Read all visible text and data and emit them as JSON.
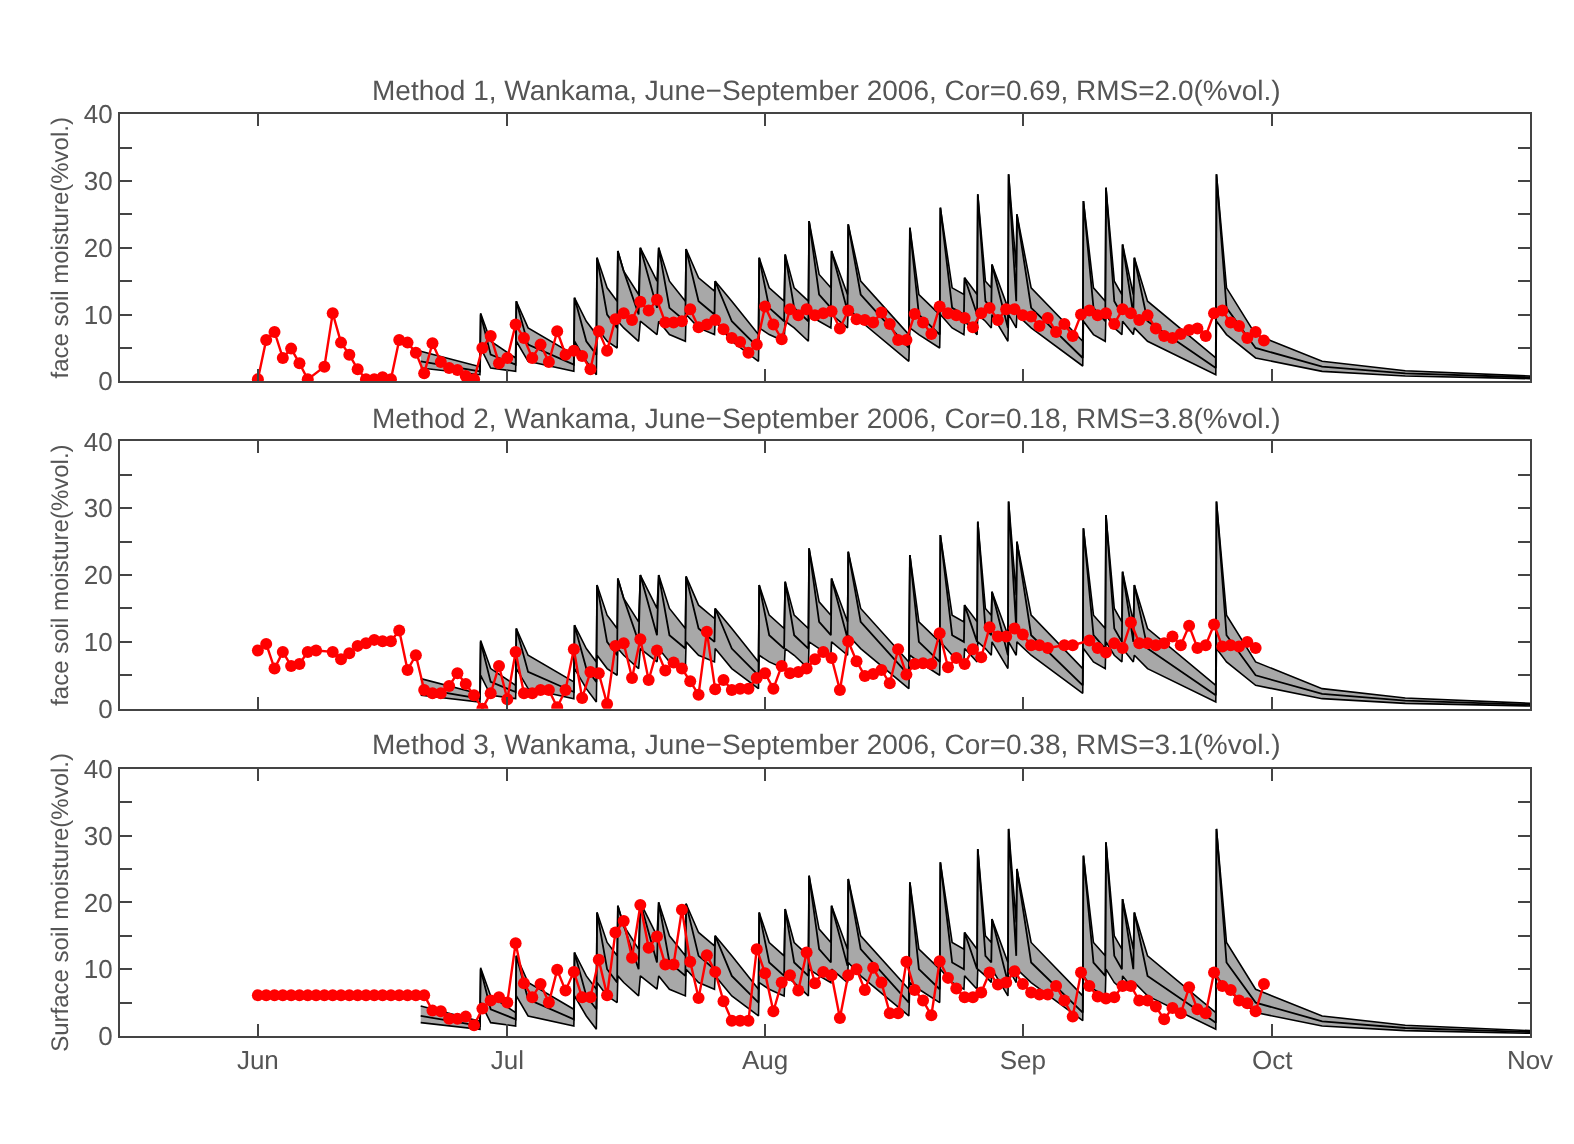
{
  "chart_data": [
    {
      "type": "line",
      "title": "Method 1, Wankama, June−September 2006, Cor=0.69, RMS=2.0(%vol.)",
      "ylabel": "face soil moisture(%vol.)",
      "xlim": [
        "2006-05-15T10:00",
        "2006-11-01"
      ],
      "xticks": [
        {
          "value": "2006-06-01",
          "label": null
        },
        {
          "value": "2006-07-01",
          "label": null
        },
        {
          "value": "2006-08-01",
          "label": null
        },
        {
          "value": "2006-09-01",
          "label": null
        },
        {
          "value": "2006-10-01",
          "label": null
        },
        {
          "value": "2006-11-01",
          "label": null
        }
      ],
      "ylim": [
        0,
        40
      ],
      "yticks": [
        0,
        {
          "value": 5,
          "label": null
        },
        10,
        {
          "value": 15,
          "label": null
        },
        20,
        {
          "value": 25,
          "label": null
        },
        30,
        {
          "value": 35,
          "label": null
        },
        40
      ],
      "tick_labels": "y",
      "line_style": "solid",
      "series": [
        {
          "marker": "none",
          "color": "#000000",
          "x": [
            "2006-06-20T14:00",
            "2006-06-27T17:00",
            "2006-06-27T19:00",
            "2006-06-29",
            "2006-07-02",
            "2006-07-02T02:00",
            "2006-07-03T12:00",
            "2006-07-09",
            "2006-07-09T02:00",
            "2006-07-10T12:00",
            "2006-07-11T17:00",
            "2006-07-11T19:00",
            "2006-07-13",
            "2006-07-14T05:00",
            "2006-07-14T07:00",
            "2006-07-15",
            "2006-07-16T19:00",
            "2006-07-17",
            "2006-07-19",
            "2006-07-19T05:00",
            "2006-07-20T12:00",
            "2006-07-22T10:00",
            "2006-07-22T12:00",
            "2006-07-24",
            "2006-07-25T22:00",
            "2006-07-26",
            "2006-07-28",
            "2006-07-31T05:00",
            "2006-07-31T07:00",
            "2006-08-01T12:00",
            "2006-08-03T07:00",
            "2006-08-03T10:00",
            "2006-08-04T12:00",
            "2006-08-06T05:00",
            "2006-08-06T07:00",
            "2006-08-07T12:00",
            "2006-08-08T22:00",
            "2006-08-09",
            "2006-08-10T22:00",
            "2006-08-11",
            "2006-08-12T12:00",
            "2006-08-18T07:00",
            "2006-08-18T10:00",
            "2006-08-19T12:00",
            "2006-08-22",
            "2006-08-22T02:00",
            "2006-08-23T12:00",
            "2006-08-24T22:00",
            "2006-08-25",
            "2006-08-26T12:00",
            "2006-08-26T14:00",
            "2006-08-27T12:00",
            "2006-08-28T05:00",
            "2006-08-28T07:00",
            "2006-08-30T05:00",
            "2006-08-30T07:00",
            "2006-08-31T05:00",
            "2006-08-31T07:00",
            "2006-09-02",
            "2006-09-08T05:00",
            "2006-09-08T07:00",
            "2006-09-09T12:00",
            "2006-09-10T22:00",
            "2006-09-11",
            "2006-09-12",
            "2006-09-12T22:00",
            "2006-09-13",
            "2006-09-14T07:00",
            "2006-09-14T10:00",
            "2006-09-16",
            "2006-09-24T05:00",
            "2006-09-24T07:00",
            "2006-09-25T12:00",
            "2006-09-29",
            "2006-10-07",
            "2006-10-17",
            "2006-11-01"
          ],
          "values": [
            3,
            1.5,
            10,
            4,
            2.5,
            12,
            5.5,
            2.5,
            12.5,
            6,
            4,
            18.5,
            10,
            8,
            19.5,
            16.5,
            10,
            20,
            11,
            20,
            11,
            9,
            19.8,
            12,
            10,
            15,
            9,
            5,
            18.5,
            11,
            9,
            19,
            11,
            9,
            24,
            13,
            11,
            19.5,
            10.5,
            23.5,
            13,
            5,
            23,
            10,
            7,
            26,
            11,
            10,
            15.5,
            10,
            28,
            12,
            11,
            17.5,
            8,
            31,
            12,
            25,
            11,
            3.5,
            27,
            11,
            9,
            29,
            12,
            10,
            20.5,
            10,
            18.5,
            9,
            2,
            31,
            11,
            5,
            2.2,
            1.2,
            0.6
          ],
          "lower": [
            2,
            1,
            5,
            2,
            1.5,
            6,
            3,
            1.5,
            6,
            3,
            1,
            8,
            6,
            5,
            9,
            8,
            6,
            9,
            7,
            9,
            7,
            6,
            10,
            8,
            7,
            9,
            6,
            3,
            8,
            7,
            6,
            9,
            8,
            6,
            10,
            9,
            8,
            10,
            8,
            11,
            9,
            3,
            8,
            7,
            5,
            10,
            8,
            7,
            9,
            7,
            10,
            9,
            8,
            10,
            6,
            10,
            8,
            10,
            8,
            2.3,
            9,
            7,
            6,
            10,
            8,
            7,
            9,
            7,
            8,
            6,
            1,
            9,
            7,
            3.5,
            1.5,
            0.8,
            0.4
          ],
          "upper": [
            4.5,
            2.2,
            10.2,
            6,
            3.5,
            12,
            8,
            4,
            12.5,
            9,
            7,
            18.5,
            14,
            12,
            19.5,
            16.5,
            13,
            20,
            15,
            20,
            15,
            12,
            19.8,
            15.5,
            13.5,
            15,
            12,
            7,
            18.5,
            14,
            12,
            19,
            14,
            12,
            24,
            16,
            14,
            19.5,
            13,
            23.5,
            15,
            7,
            23,
            13,
            10,
            26,
            14,
            13,
            15.5,
            13,
            28,
            15,
            14,
            17.5,
            11,
            31,
            17,
            25,
            14,
            6,
            27,
            14,
            12,
            29,
            15,
            13,
            20.5,
            13,
            18.5,
            12,
            3.5,
            31,
            14,
            7,
            3,
            1.6,
            0.8
          ]
        },
        {
          "marker": "circle",
          "color": "#ff0000",
          "x": [
            "2006-06-01",
            "2006-06-02",
            "2006-06-03",
            "2006-06-04",
            "2006-06-05",
            "2006-06-06",
            "2006-06-07",
            "2006-06-09",
            "2006-06-10",
            "2006-06-11",
            "2006-06-12",
            "2006-06-13",
            "2006-06-14",
            "2006-06-15",
            "2006-06-16",
            "2006-06-17",
            "2006-06-18",
            "2006-06-19",
            "2006-06-20",
            "2006-06-21",
            "2006-06-22",
            "2006-06-23",
            "2006-06-24",
            "2006-06-25",
            "2006-06-26",
            "2006-06-27",
            "2006-06-28",
            "2006-06-29",
            "2006-06-30",
            "2006-07-01",
            "2006-07-02",
            "2006-07-03",
            "2006-07-04",
            "2006-07-05",
            "2006-07-06",
            "2006-07-07",
            "2006-07-08",
            "2006-07-09",
            "2006-07-10",
            "2006-07-11",
            "2006-07-12",
            "2006-07-13",
            "2006-07-14",
            "2006-07-15",
            "2006-07-16",
            "2006-07-17",
            "2006-07-18",
            "2006-07-19",
            "2006-07-20",
            "2006-07-21",
            "2006-07-22",
            "2006-07-23",
            "2006-07-24",
            "2006-07-25",
            "2006-07-26",
            "2006-07-27",
            "2006-07-28",
            "2006-07-29",
            "2006-07-30",
            "2006-07-31",
            "2006-08-01",
            "2006-08-02",
            "2006-08-03",
            "2006-08-04",
            "2006-08-05",
            "2006-08-06",
            "2006-08-07",
            "2006-08-08",
            "2006-08-09",
            "2006-08-10",
            "2006-08-11",
            "2006-08-12",
            "2006-08-13",
            "2006-08-14",
            "2006-08-15",
            "2006-08-16",
            "2006-08-17",
            "2006-08-18",
            "2006-08-19",
            "2006-08-20",
            "2006-08-21",
            "2006-08-22",
            "2006-08-23",
            "2006-08-24",
            "2006-08-25",
            "2006-08-26",
            "2006-08-27",
            "2006-08-28",
            "2006-08-29",
            "2006-08-30",
            "2006-08-31",
            "2006-09-01",
            "2006-09-02",
            "2006-09-03",
            "2006-09-04",
            "2006-09-05",
            "2006-09-06",
            "2006-09-07",
            "2006-09-08",
            "2006-09-09",
            "2006-09-10",
            "2006-09-11",
            "2006-09-12",
            "2006-09-13",
            "2006-09-14",
            "2006-09-15",
            "2006-09-16",
            "2006-09-17",
            "2006-09-18",
            "2006-09-19",
            "2006-09-20",
            "2006-09-21",
            "2006-09-22",
            "2006-09-23",
            "2006-09-24",
            "2006-09-25",
            "2006-09-26",
            "2006-09-27",
            "2006-09-28",
            "2006-09-29",
            "2006-09-30"
          ],
          "values": [
            0.3,
            6.2,
            7.4,
            3.5,
            4.9,
            2.7,
            0.3,
            2.2,
            10.2,
            5.8,
            4,
            1.8,
            0.3,
            0.3,
            0.6,
            0.3,
            6.2,
            5.8,
            4.3,
            1.2,
            5.7,
            2.9,
            2,
            1.7,
            0.8,
            0.3,
            5,
            6.8,
            2.7,
            3.5,
            8.5,
            6.5,
            3.5,
            5.5,
            2.9,
            7.5,
            4,
            4.6,
            3.8,
            1.8,
            7.5,
            4.6,
            9.3,
            10.2,
            9.2,
            11.9,
            10.6,
            12.2,
            8.8,
            8.8,
            9,
            10.8,
            8.1,
            8.5,
            9.2,
            7.8,
            6.5,
            5.9,
            4.3,
            5.5,
            11.2,
            8.5,
            6.3,
            10.8,
            9.9,
            10.8,
            9.9,
            10.2,
            10.5,
            7.9,
            10.6,
            9.3,
            9.2,
            8.8,
            10.3,
            8.6,
            6.2,
            6.2,
            10.1,
            8.8,
            7.1,
            11.2,
            10.2,
            9.9,
            9.5,
            8.1,
            10.2,
            11,
            9.2,
            10.8,
            10.8,
            9.9,
            9.7,
            8.3,
            9.5,
            7.4,
            8.6,
            6.8,
            10,
            10.6,
            9.9,
            10.2,
            8.6,
            10.8,
            10.2,
            9.2,
            9.9,
            7.9,
            6.8,
            6.5,
            7.1,
            7.7,
            7.9,
            6.8,
            10.2,
            10.6,
            8.8,
            8.3,
            6.5,
            7.4,
            6.1
          ]
        }
      ]
    },
    {
      "type": "line",
      "title": "Method 2, Wankama, June−September 2006, Cor=0.18, RMS=3.8(%vol.)",
      "ylabel": "face soil moisture(%vol.)",
      "xlim": [
        "2006-05-15T10:00",
        "2006-11-01"
      ],
      "xticks": [
        {
          "value": "2006-06-01",
          "label": null
        },
        {
          "value": "2006-07-01",
          "label": null
        },
        {
          "value": "2006-08-01",
          "label": null
        },
        {
          "value": "2006-09-01",
          "label": null
        },
        {
          "value": "2006-10-01",
          "label": null
        },
        {
          "value": "2006-11-01",
          "label": null
        }
      ],
      "ylim": [
        0,
        40
      ],
      "yticks": [
        0,
        {
          "value": 5,
          "label": null
        },
        10,
        {
          "value": 15,
          "label": null
        },
        20,
        {
          "value": 25,
          "label": null
        },
        30,
        {
          "value": 35,
          "label": null
        },
        40
      ],
      "tick_labels": "y",
      "line_style": "solid",
      "series": [
        {
          "marker": "none",
          "color": "#000000",
          "x": [
            "2006-06-20T14:00",
            "2006-06-27T17:00",
            "2006-06-27T19:00",
            "2006-06-29",
            "2006-07-02",
            "2006-07-02T02:00",
            "2006-07-03T12:00",
            "2006-07-09",
            "2006-07-09T02:00",
            "2006-07-10T12:00",
            "2006-07-11T17:00",
            "2006-07-11T19:00",
            "2006-07-13",
            "2006-07-14T05:00",
            "2006-07-14T07:00",
            "2006-07-15",
            "2006-07-16T19:00",
            "2006-07-17",
            "2006-07-19",
            "2006-07-19T05:00",
            "2006-07-20T12:00",
            "2006-07-22T10:00",
            "2006-07-22T12:00",
            "2006-07-24",
            "2006-07-25T22:00",
            "2006-07-26",
            "2006-07-28",
            "2006-07-31T05:00",
            "2006-07-31T07:00",
            "2006-08-01T12:00",
            "2006-08-03T07:00",
            "2006-08-03T10:00",
            "2006-08-04T12:00",
            "2006-08-06T05:00",
            "2006-08-06T07:00",
            "2006-08-07T12:00",
            "2006-08-08T22:00",
            "2006-08-09",
            "2006-08-10T22:00",
            "2006-08-11",
            "2006-08-12T12:00",
            "2006-08-18T07:00",
            "2006-08-18T10:00",
            "2006-08-19T12:00",
            "2006-08-22",
            "2006-08-22T02:00",
            "2006-08-23T12:00",
            "2006-08-24T22:00",
            "2006-08-25",
            "2006-08-26T12:00",
            "2006-08-26T14:00",
            "2006-08-27T12:00",
            "2006-08-28T05:00",
            "2006-08-28T07:00",
            "2006-08-30T05:00",
            "2006-08-30T07:00",
            "2006-08-31T05:00",
            "2006-08-31T07:00",
            "2006-09-02",
            "2006-09-08T05:00",
            "2006-09-08T07:00",
            "2006-09-09T12:00",
            "2006-09-10T22:00",
            "2006-09-11",
            "2006-09-12",
            "2006-09-12T22:00",
            "2006-09-13",
            "2006-09-14T07:00",
            "2006-09-14T10:00",
            "2006-09-16",
            "2006-09-24T05:00",
            "2006-09-24T07:00",
            "2006-09-25T12:00",
            "2006-09-29",
            "2006-10-07",
            "2006-10-17",
            "2006-11-01"
          ],
          "values": [
            3,
            1.5,
            10,
            4,
            2.5,
            12,
            5.5,
            2.5,
            12.5,
            6,
            4,
            18.5,
            10,
            8,
            19.5,
            16.5,
            10,
            20,
            11,
            20,
            11,
            9,
            19.8,
            12,
            10,
            15,
            9,
            5,
            18.5,
            11,
            9,
            19,
            11,
            9,
            24,
            13,
            11,
            19.5,
            10.5,
            23.5,
            13,
            5,
            23,
            10,
            7,
            26,
            11,
            10,
            15.5,
            10,
            28,
            12,
            11,
            17.5,
            8,
            31,
            12,
            25,
            11,
            3.5,
            27,
            11,
            9,
            29,
            12,
            10,
            20.5,
            10,
            18.5,
            9,
            2,
            31,
            11,
            5,
            2.2,
            1.2,
            0.6
          ],
          "lower": [
            2,
            1,
            5,
            2,
            1.5,
            6,
            3,
            1.5,
            6,
            3,
            1,
            8,
            6,
            5,
            9,
            8,
            6,
            9,
            7,
            9,
            7,
            6,
            10,
            8,
            7,
            9,
            6,
            3,
            8,
            7,
            6,
            9,
            8,
            6,
            10,
            9,
            8,
            10,
            8,
            11,
            9,
            3,
            8,
            7,
            5,
            10,
            8,
            7,
            9,
            7,
            10,
            9,
            8,
            10,
            6,
            10,
            8,
            10,
            8,
            2.3,
            9,
            7,
            6,
            10,
            8,
            7,
            9,
            7,
            8,
            6,
            1,
            9,
            7,
            3.5,
            1.5,
            0.8,
            0.4
          ],
          "upper": [
            4.5,
            2.2,
            10.2,
            6,
            3.5,
            12,
            8,
            4,
            12.5,
            9,
            7,
            18.5,
            14,
            12,
            19.5,
            16.5,
            13,
            20,
            15,
            20,
            15,
            12,
            19.8,
            15.5,
            13.5,
            15,
            12,
            7,
            18.5,
            14,
            12,
            19,
            14,
            12,
            24,
            16,
            14,
            19.5,
            13,
            23.5,
            15,
            7,
            23,
            13,
            10,
            26,
            14,
            13,
            15.5,
            13,
            28,
            15,
            14,
            17.5,
            11,
            31,
            17,
            25,
            14,
            6,
            27,
            14,
            12,
            29,
            15,
            13,
            20.5,
            13,
            18.5,
            12,
            3.5,
            31,
            14,
            7,
            3,
            1.6,
            0.8
          ]
        },
        {
          "marker": "circle",
          "color": "#ff0000",
          "x": [
            "2006-06-01",
            "2006-06-02",
            "2006-06-03",
            "2006-06-04",
            "2006-06-05",
            "2006-06-06",
            "2006-06-07",
            "2006-06-08",
            "2006-06-10",
            "2006-06-11",
            "2006-06-12",
            "2006-06-13",
            "2006-06-14",
            "2006-06-15",
            "2006-06-16",
            "2006-06-17",
            "2006-06-18",
            "2006-06-19",
            "2006-06-20",
            "2006-06-21",
            "2006-06-22",
            "2006-06-23",
            "2006-06-24",
            "2006-06-25",
            "2006-06-26",
            "2006-06-27",
            "2006-06-28",
            "2006-06-29",
            "2006-06-30",
            "2006-07-01",
            "2006-07-02",
            "2006-07-03",
            "2006-07-04",
            "2006-07-05",
            "2006-07-06",
            "2006-07-07",
            "2006-07-08",
            "2006-07-09",
            "2006-07-10",
            "2006-07-11",
            "2006-07-12",
            "2006-07-13",
            "2006-07-14",
            "2006-07-15",
            "2006-07-16",
            "2006-07-17",
            "2006-07-18",
            "2006-07-19",
            "2006-07-20",
            "2006-07-21",
            "2006-07-22",
            "2006-07-23",
            "2006-07-24",
            "2006-07-25",
            "2006-07-26",
            "2006-07-27",
            "2006-07-28",
            "2006-07-29",
            "2006-07-30",
            "2006-07-31",
            "2006-08-01",
            "2006-08-02",
            "2006-08-03",
            "2006-08-04",
            "2006-08-05",
            "2006-08-06",
            "2006-08-07",
            "2006-08-08",
            "2006-08-09",
            "2006-08-10",
            "2006-08-11",
            "2006-08-12",
            "2006-08-13",
            "2006-08-14",
            "2006-08-15",
            "2006-08-16",
            "2006-08-17",
            "2006-08-18",
            "2006-08-19",
            "2006-08-20",
            "2006-08-21",
            "2006-08-22",
            "2006-08-23",
            "2006-08-24",
            "2006-08-25",
            "2006-08-26",
            "2006-08-27",
            "2006-08-28",
            "2006-08-29",
            "2006-08-30",
            "2006-08-31",
            "2006-09-01",
            "2006-09-02",
            "2006-09-03",
            "2006-09-04",
            "2006-09-06",
            "2006-09-07",
            "2006-09-09",
            "2006-09-10",
            "2006-09-11",
            "2006-09-12",
            "2006-09-13",
            "2006-09-14",
            "2006-09-15",
            "2006-09-16",
            "2006-09-17",
            "2006-09-18",
            "2006-09-19",
            "2006-09-20",
            "2006-09-21",
            "2006-09-22",
            "2006-09-23",
            "2006-09-24",
            "2006-09-25",
            "2006-09-26",
            "2006-09-27",
            "2006-09-28",
            "2006-09-29"
          ],
          "values": [
            8.7,
            9.7,
            6,
            8.5,
            6.4,
            6.7,
            8.5,
            8.7,
            8.5,
            7.4,
            8.3,
            9.4,
            9.8,
            10.3,
            10.1,
            10.1,
            11.7,
            5.8,
            8,
            2.8,
            2.3,
            2.3,
            3.4,
            5.3,
            3.7,
            2,
            0,
            2.3,
            6.4,
            1.4,
            8.5,
            2.3,
            2.3,
            2.8,
            2.8,
            0.2,
            2.8,
            8.9,
            1.6,
            5.5,
            5.3,
            0.7,
            9.4,
            9.8,
            4.6,
            10.4,
            4.3,
            8.7,
            5.7,
            6.9,
            6,
            4.1,
            2.1,
            11.5,
            2.9,
            4.3,
            2.8,
            3,
            3,
            4.6,
            5.3,
            3,
            6.4,
            5.3,
            5.5,
            6,
            7.4,
            8.5,
            7.6,
            2.8,
            10.1,
            7.1,
            4.9,
            5.2,
            5.8,
            3.8,
            8.9,
            5.1,
            6.7,
            6.8,
            6.7,
            11.3,
            6.2,
            7.6,
            6.7,
            8.9,
            7.7,
            12.2,
            10.8,
            10.8,
            12,
            11.1,
            9.5,
            9.5,
            9.1,
            9.5,
            9.5,
            10.2,
            9.1,
            8.4,
            9.8,
            9.1,
            12.9,
            9.8,
            9.8,
            9.5,
            9.8,
            10.8,
            9.5,
            12.4,
            9.1,
            9.5,
            12.6,
            9.3,
            9.5,
            9.3,
            10,
            9.1
          ]
        }
      ]
    },
    {
      "type": "line",
      "title": "Method 3, Wankama, June−September 2006, Cor=0.38, RMS=3.1(%vol.)",
      "ylabel": "Surface soil moisture(%vol.)",
      "xlim": [
        "2006-05-15T10:00",
        "2006-11-01"
      ],
      "xticks": [
        {
          "value": "2006-06-01",
          "label": "Jun"
        },
        {
          "value": "2006-07-01",
          "label": "Jul"
        },
        {
          "value": "2006-08-01",
          "label": "Aug"
        },
        {
          "value": "2006-09-01",
          "label": "Sep"
        },
        {
          "value": "2006-10-01",
          "label": "Oct"
        },
        {
          "value": "2006-11-01",
          "label": "Nov"
        }
      ],
      "ylim": [
        0,
        40
      ],
      "yticks": [
        0,
        {
          "value": 5,
          "label": null
        },
        10,
        {
          "value": 15,
          "label": null
        },
        20,
        {
          "value": 25,
          "label": null
        },
        30,
        {
          "value": 35,
          "label": null
        },
        40
      ],
      "line_style": "solid",
      "series": [
        {
          "marker": "none",
          "color": "#000000",
          "x": [
            "2006-06-20T14:00",
            "2006-06-27T17:00",
            "2006-06-27T19:00",
            "2006-06-29",
            "2006-07-02",
            "2006-07-02T02:00",
            "2006-07-03T12:00",
            "2006-07-09",
            "2006-07-09T02:00",
            "2006-07-10T12:00",
            "2006-07-11T17:00",
            "2006-07-11T19:00",
            "2006-07-13",
            "2006-07-14T05:00",
            "2006-07-14T07:00",
            "2006-07-15",
            "2006-07-16T19:00",
            "2006-07-17",
            "2006-07-19",
            "2006-07-19T05:00",
            "2006-07-20T12:00",
            "2006-07-22T10:00",
            "2006-07-22T12:00",
            "2006-07-24",
            "2006-07-25T22:00",
            "2006-07-26",
            "2006-07-28",
            "2006-07-31T05:00",
            "2006-07-31T07:00",
            "2006-08-01T12:00",
            "2006-08-03T07:00",
            "2006-08-03T10:00",
            "2006-08-04T12:00",
            "2006-08-06T05:00",
            "2006-08-06T07:00",
            "2006-08-07T12:00",
            "2006-08-08T22:00",
            "2006-08-09",
            "2006-08-10T22:00",
            "2006-08-11",
            "2006-08-12T12:00",
            "2006-08-18T07:00",
            "2006-08-18T10:00",
            "2006-08-19T12:00",
            "2006-08-22",
            "2006-08-22T02:00",
            "2006-08-23T12:00",
            "2006-08-24T22:00",
            "2006-08-25",
            "2006-08-26T12:00",
            "2006-08-26T14:00",
            "2006-08-27T12:00",
            "2006-08-28T05:00",
            "2006-08-28T07:00",
            "2006-08-30T05:00",
            "2006-08-30T07:00",
            "2006-08-31T05:00",
            "2006-08-31T07:00",
            "2006-09-02",
            "2006-09-08T05:00",
            "2006-09-08T07:00",
            "2006-09-09T12:00",
            "2006-09-10T22:00",
            "2006-09-11",
            "2006-09-12",
            "2006-09-12T22:00",
            "2006-09-13",
            "2006-09-14T07:00",
            "2006-09-14T10:00",
            "2006-09-16",
            "2006-09-24T05:00",
            "2006-09-24T07:00",
            "2006-09-25T12:00",
            "2006-09-29",
            "2006-10-07",
            "2006-10-17",
            "2006-11-01"
          ],
          "values": [
            3,
            1.5,
            10,
            4,
            2.5,
            12,
            5.5,
            2.5,
            12.5,
            6,
            4,
            18.5,
            10,
            8,
            19.5,
            16.5,
            10,
            20,
            11,
            20,
            11,
            9,
            19.8,
            12,
            10,
            15,
            9,
            5,
            18.5,
            11,
            9,
            19,
            11,
            9,
            24,
            13,
            11,
            19.5,
            10.5,
            23.5,
            13,
            5,
            23,
            10,
            7,
            26,
            11,
            10,
            15.5,
            10,
            28,
            12,
            11,
            17.5,
            8,
            31,
            12,
            25,
            11,
            3.5,
            27,
            11,
            9,
            29,
            12,
            10,
            20.5,
            10,
            18.5,
            9,
            2,
            31,
            11,
            5,
            2.2,
            1.2,
            0.6
          ],
          "lower": [
            2,
            1,
            5,
            2,
            1.5,
            6,
            3,
            1.5,
            6,
            3,
            1,
            8,
            6,
            5,
            9,
            8,
            6,
            9,
            7,
            9,
            7,
            6,
            10,
            8,
            7,
            9,
            6,
            3,
            8,
            7,
            6,
            9,
            8,
            6,
            10,
            9,
            8,
            10,
            8,
            11,
            9,
            3,
            8,
            7,
            5,
            10,
            8,
            7,
            9,
            7,
            10,
            9,
            8,
            10,
            6,
            10,
            8,
            10,
            8,
            2.3,
            9,
            7,
            6,
            10,
            8,
            7,
            9,
            7,
            8,
            6,
            1,
            9,
            7,
            3.5,
            1.5,
            0.8,
            0.4
          ],
          "upper": [
            4.5,
            2.2,
            10.2,
            6,
            3.5,
            12,
            8,
            4,
            12.5,
            9,
            7,
            18.5,
            14,
            12,
            19.5,
            16.5,
            13,
            20,
            15,
            20,
            15,
            12,
            19.8,
            15.5,
            13.5,
            15,
            12,
            7,
            18.5,
            14,
            12,
            19,
            14,
            12,
            24,
            16,
            14,
            19.5,
            13,
            23.5,
            15,
            7,
            23,
            13,
            10,
            26,
            14,
            13,
            15.5,
            13,
            28,
            15,
            14,
            17.5,
            11,
            31,
            17,
            25,
            14,
            6,
            27,
            14,
            12,
            29,
            15,
            13,
            20.5,
            13,
            18.5,
            12,
            3.5,
            31,
            14,
            7,
            3,
            1.6,
            0.8
          ]
        },
        {
          "marker": "circle",
          "color": "#ff0000",
          "x": [
            "2006-06-01",
            "2006-06-02",
            "2006-06-03",
            "2006-06-04",
            "2006-06-05",
            "2006-06-06",
            "2006-06-07",
            "2006-06-08",
            "2006-06-09",
            "2006-06-10",
            "2006-06-11",
            "2006-06-12",
            "2006-06-13",
            "2006-06-14",
            "2006-06-15",
            "2006-06-16",
            "2006-06-17",
            "2006-06-18",
            "2006-06-19",
            "2006-06-20",
            "2006-06-21",
            "2006-06-22",
            "2006-06-23",
            "2006-06-24",
            "2006-06-25",
            "2006-06-26",
            "2006-06-27",
            "2006-06-28",
            "2006-06-29",
            "2006-06-30",
            "2006-07-01",
            "2006-07-02",
            "2006-07-03",
            "2006-07-04",
            "2006-07-05",
            "2006-07-06",
            "2006-07-07",
            "2006-07-08",
            "2006-07-09",
            "2006-07-10",
            "2006-07-11",
            "2006-07-12",
            "2006-07-13",
            "2006-07-14",
            "2006-07-15",
            "2006-07-16",
            "2006-07-17",
            "2006-07-18",
            "2006-07-19",
            "2006-07-20",
            "2006-07-21",
            "2006-07-22",
            "2006-07-23",
            "2006-07-24",
            "2006-07-25",
            "2006-07-26",
            "2006-07-27",
            "2006-07-28",
            "2006-07-29",
            "2006-07-30",
            "2006-07-31",
            "2006-08-01",
            "2006-08-02",
            "2006-08-03",
            "2006-08-04",
            "2006-08-05",
            "2006-08-06",
            "2006-08-07",
            "2006-08-08",
            "2006-08-09",
            "2006-08-10",
            "2006-08-11",
            "2006-08-12",
            "2006-08-13",
            "2006-08-14",
            "2006-08-15",
            "2006-08-16",
            "2006-08-17",
            "2006-08-18",
            "2006-08-19",
            "2006-08-20",
            "2006-08-21",
            "2006-08-22",
            "2006-08-23",
            "2006-08-24",
            "2006-08-25",
            "2006-08-26",
            "2006-08-27",
            "2006-08-28",
            "2006-08-29",
            "2006-08-30",
            "2006-08-31",
            "2006-09-01",
            "2006-09-02",
            "2006-09-03",
            "2006-09-04",
            "2006-09-05",
            "2006-09-06",
            "2006-09-07",
            "2006-09-08",
            "2006-09-09",
            "2006-09-10",
            "2006-09-11",
            "2006-09-12",
            "2006-09-13",
            "2006-09-14",
            "2006-09-15",
            "2006-09-16",
            "2006-09-17",
            "2006-09-18",
            "2006-09-19",
            "2006-09-20",
            "2006-09-21",
            "2006-09-22",
            "2006-09-23",
            "2006-09-24",
            "2006-09-25",
            "2006-09-26",
            "2006-09-27",
            "2006-09-28",
            "2006-09-29",
            "2006-09-30"
          ],
          "values": [
            6.1,
            6.1,
            6.1,
            6.1,
            6.1,
            6.1,
            6.1,
            6.1,
            6.1,
            6.1,
            6.1,
            6.1,
            6.1,
            6.1,
            6.1,
            6.1,
            6.1,
            6.1,
            6.1,
            6.1,
            6.1,
            3.8,
            3.7,
            2.6,
            2.6,
            2.9,
            1.6,
            4.1,
            5.3,
            5.8,
            5,
            13.9,
            7.9,
            5.8,
            7.8,
            5,
            9.9,
            6.8,
            9.6,
            5.8,
            5.8,
            11.4,
            6.1,
            15.5,
            17.2,
            11.7,
            19.6,
            13.2,
            14.9,
            10.7,
            10.7,
            18.9,
            11.1,
            5.7,
            12.1,
            9.6,
            5.2,
            2.3,
            2.3,
            2.3,
            13,
            9.4,
            3.7,
            8,
            9.1,
            6.8,
            12.5,
            7.9,
            9.6,
            9.1,
            2.7,
            9.1,
            10,
            6.9,
            10.2,
            8,
            3.4,
            3.4,
            11.1,
            6.9,
            5.3,
            3.1,
            11.2,
            8.7,
            7.1,
            5.8,
            5.8,
            6.5,
            9.5,
            7.7,
            8,
            9.7,
            7.8,
            6.5,
            6.2,
            6.2,
            7.5,
            5.3,
            2.9,
            9.5,
            7.5,
            5.9,
            5.6,
            5.8,
            7.5,
            7.5,
            5.3,
            5.3,
            4.4,
            2.5,
            4.2,
            3.4,
            7.3,
            4,
            3.4,
            9.5,
            7.5,
            6.9,
            5.3,
            4.9,
            3.7,
            7.8
          ]
        }
      ]
    }
  ]
}
